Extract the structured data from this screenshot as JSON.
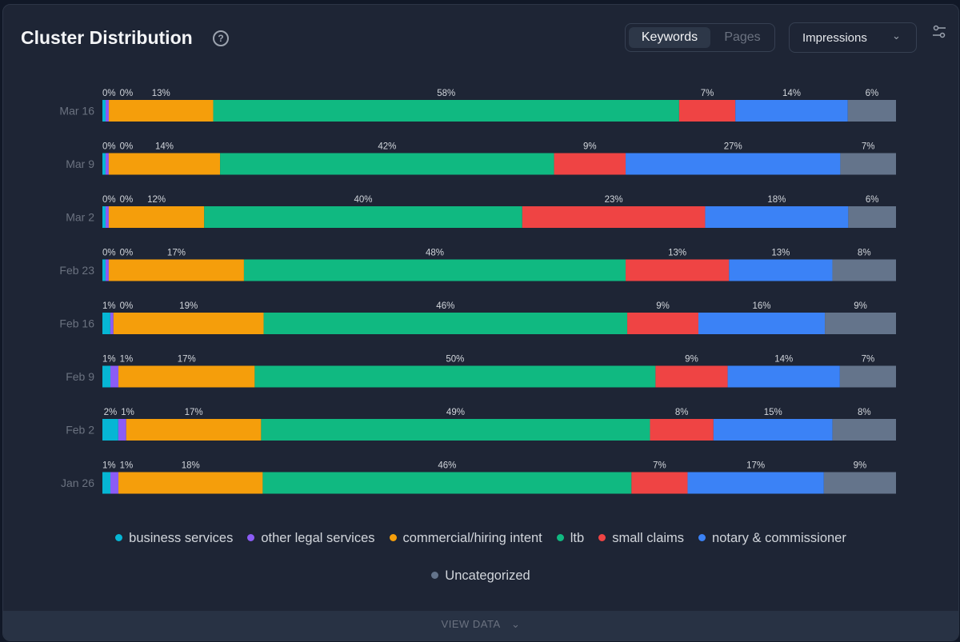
{
  "header": {
    "title": "Cluster Distribution",
    "help_icon": "question-circle-icon",
    "tabs": [
      "Keywords",
      "Pages"
    ],
    "active_tab": "Keywords",
    "metric_select": "Impressions",
    "filter_icon": "sliders-icon"
  },
  "footer": {
    "label": "VIEW DATA"
  },
  "chart_data": {
    "type": "bar",
    "orientation": "horizontal",
    "stacked": true,
    "unit": "%",
    "title": "Cluster Distribution",
    "categories": [
      "Mar 16",
      "Mar 9",
      "Mar 2",
      "Feb 23",
      "Feb 16",
      "Feb 9",
      "Feb 2",
      "Jan 26"
    ],
    "series": [
      {
        "name": "business services",
        "color": "#06b6d4",
        "values": [
          0,
          0,
          0,
          0,
          1,
          1,
          2,
          1
        ]
      },
      {
        "name": "other legal services",
        "color": "#8b5cf6",
        "values": [
          0,
          0,
          0,
          0,
          0,
          1,
          1,
          1
        ]
      },
      {
        "name": "commercial/hiring intent",
        "color": "#f59e0b",
        "values": [
          13,
          14,
          12,
          17,
          19,
          17,
          17,
          18
        ]
      },
      {
        "name": "ltb",
        "color": "#10b981",
        "values": [
          58,
          42,
          40,
          48,
          46,
          50,
          49,
          46
        ]
      },
      {
        "name": "small claims",
        "color": "#ef4444",
        "values": [
          7,
          9,
          23,
          13,
          9,
          9,
          8,
          7
        ]
      },
      {
        "name": "notary & commissioner",
        "color": "#3b82f6",
        "values": [
          14,
          27,
          18,
          13,
          16,
          14,
          15,
          17
        ]
      },
      {
        "name": "Uncategorized",
        "color": "#64748b",
        "values": [
          6,
          7,
          6,
          8,
          9,
          7,
          8,
          9
        ]
      }
    ],
    "legend_position": "bottom",
    "grid": false
  }
}
